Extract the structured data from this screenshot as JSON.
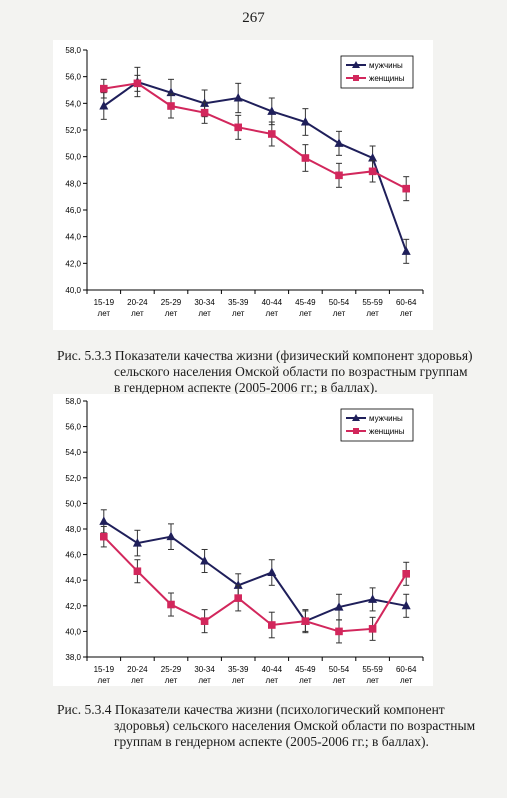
{
  "page_number": "267",
  "captions": [
    {
      "lines": [
        "Рис. 5.3.3 Показатели качества жизни (физический компонент здоровья)",
        "сельского населения Омской области по возрастным группам",
        "в гендерном аспекте (2005-2006 гг.; в баллах)."
      ]
    },
    {
      "lines": [
        "Рис. 5.3.4 Показатели качества жизни (психологический компонент",
        "здоровья) сельского населения Омской области по возрастным",
        "группам в гендерном аспекте (2005-2006 гг.; в баллах)."
      ]
    }
  ],
  "chart_data": [
    {
      "type": "line",
      "categories": [
        "15-19 лет",
        "20-24 лет",
        "25-29 лет",
        "30-34 лет",
        "35-39 лет",
        "40-44 лет",
        "45-49 лет",
        "50-54 лет",
        "55-59 лет",
        "60-64 лет"
      ],
      "category_lines": [
        [
          "15-19",
          "лет"
        ],
        [
          "20-24",
          "лет"
        ],
        [
          "25-29",
          "лет"
        ],
        [
          "30-34",
          "лет"
        ],
        [
          "35-39",
          "лет"
        ],
        [
          "40-44",
          "лет"
        ],
        [
          "45-49",
          "лет"
        ],
        [
          "50-54",
          "лет"
        ],
        [
          "55-59",
          "лет"
        ],
        [
          "60-64",
          "лет"
        ]
      ],
      "ylim": [
        40,
        58
      ],
      "ytick_step": 2,
      "ytick_labels": [
        "40,0",
        "42,0",
        "44,0",
        "46,0",
        "48,0",
        "50,0",
        "52,0",
        "54,0",
        "56,0",
        "58,0"
      ],
      "grid": false,
      "legend_position": "top-right",
      "series": [
        {
          "name": "мужчины",
          "marker": "triangle",
          "color": "#1f1f5a",
          "values": [
            53.8,
            55.6,
            54.8,
            54.0,
            54.4,
            53.4,
            52.6,
            51.0,
            49.9,
            42.9
          ],
          "errors": [
            1.0,
            1.1,
            1.0,
            1.0,
            1.1,
            1.0,
            1.0,
            0.9,
            0.9,
            0.9
          ]
        },
        {
          "name": "женщины",
          "marker": "square",
          "color": "#d2275c",
          "values": [
            55.1,
            55.5,
            53.8,
            53.3,
            52.2,
            51.7,
            49.9,
            48.6,
            48.9,
            47.6
          ],
          "errors": [
            0.7,
            0.6,
            0.9,
            0.8,
            0.9,
            0.9,
            1.0,
            0.9,
            0.8,
            0.9
          ]
        }
      ]
    },
    {
      "type": "line",
      "categories": [
        "15-19 лет",
        "20-24 лет",
        "25-29 лет",
        "30-34 лет",
        "35-39 лет",
        "40-44 лет",
        "45-49 лет",
        "50-54 лет",
        "55-59 лет",
        "60-64 лет"
      ],
      "category_lines": [
        [
          "15-19",
          "лет"
        ],
        [
          "20-24",
          "лет"
        ],
        [
          "25-29",
          "лет"
        ],
        [
          "30-34",
          "лет"
        ],
        [
          "35-39",
          "лет"
        ],
        [
          "40-44",
          "лет"
        ],
        [
          "45-49",
          "лет"
        ],
        [
          "50-54",
          "лет"
        ],
        [
          "55-59",
          "лет"
        ],
        [
          "60-64",
          "лет"
        ]
      ],
      "ylim": [
        38,
        58
      ],
      "ytick_step": 2,
      "ytick_labels": [
        "38,0",
        "40,0",
        "42,0",
        "44,0",
        "46,0",
        "48,0",
        "50,0",
        "52,0",
        "54,0",
        "56,0",
        "58,0"
      ],
      "grid": false,
      "legend_position": "top-right",
      "series": [
        {
          "name": "мужчины",
          "marker": "triangle",
          "color": "#1f1f5a",
          "values": [
            48.6,
            46.9,
            47.4,
            45.5,
            43.6,
            44.6,
            40.8,
            41.9,
            42.5,
            42.0
          ],
          "errors": [
            0.9,
            1.0,
            1.0,
            0.9,
            0.9,
            1.0,
            0.8,
            1.0,
            0.9,
            0.9
          ]
        },
        {
          "name": "женщины",
          "marker": "square",
          "color": "#d2275c",
          "values": [
            47.4,
            44.7,
            42.1,
            40.8,
            42.6,
            40.5,
            40.8,
            40.0,
            40.2,
            44.5
          ],
          "errors": [
            0.8,
            0.9,
            0.9,
            0.9,
            1.0,
            1.0,
            0.9,
            0.9,
            0.9,
            0.9
          ]
        }
      ]
    }
  ]
}
